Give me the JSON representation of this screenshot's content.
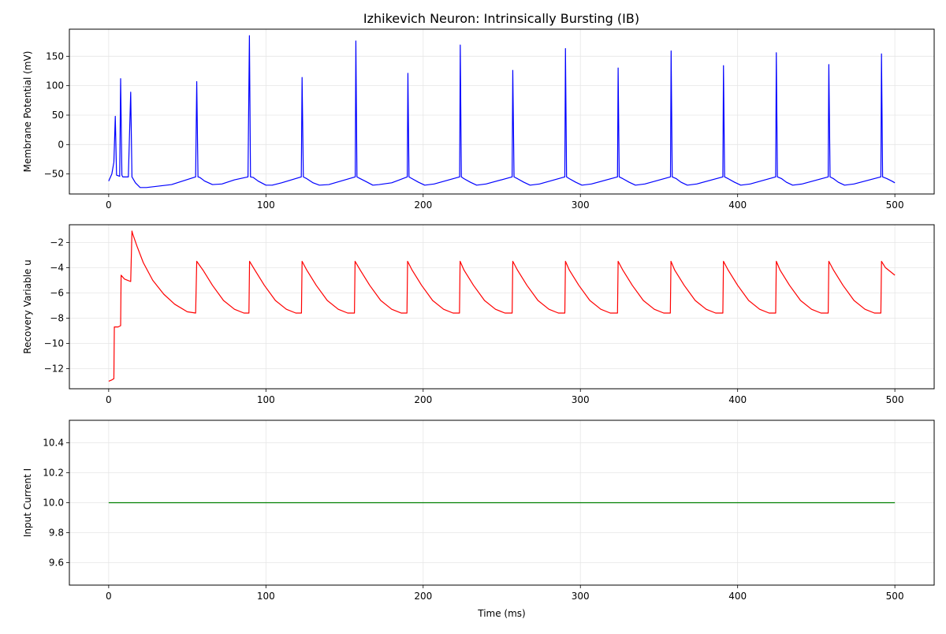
{
  "figure": {
    "title": "Izhikevich Neuron: Intrinsically Bursting (IB)"
  },
  "chart_data": [
    {
      "type": "line",
      "title": "Izhikevich Neuron: Intrinsically Bursting (IB)",
      "xlabel": "",
      "ylabel": "Membrane Potential (mV)",
      "xlim": [
        -25,
        525
      ],
      "ylim": [
        -84,
        196
      ],
      "xticks": [
        0,
        100,
        200,
        300,
        400,
        500
      ],
      "yticks": [
        -50,
        0,
        50,
        100,
        150
      ],
      "grid": true,
      "color": "#0000ff",
      "series": [
        {
          "x": [
            0,
            2,
            3.3,
            4.2,
            5,
            7,
            7.6,
            8.4,
            9,
            12.5,
            14,
            14.8,
            17,
            20,
            24,
            40,
            55.3,
            56,
            56.8,
            58,
            61,
            66,
            72,
            80,
            88.6,
            89.5,
            90.2,
            92,
            95,
            100,
            104,
            110,
            122.5,
            123,
            123.8,
            126,
            130,
            134,
            140,
            156.8,
            157.2,
            157.9,
            160,
            163,
            168,
            172,
            180,
            189.9,
            190.3,
            191,
            193,
            197,
            201,
            207,
            223.2,
            223.6,
            224.3,
            226,
            230,
            234,
            240,
            256.6,
            257,
            257.8,
            260,
            264,
            268,
            274,
            290.1,
            290.5,
            291.2,
            293,
            297,
            301,
            307,
            323.6,
            324,
            324.7,
            327,
            331,
            335,
            341,
            357.3,
            357.7,
            358.4,
            361,
            364,
            368,
            374,
            390.6,
            391,
            391.7,
            394,
            398,
            402,
            408,
            424.2,
            424.6,
            425.3,
            428,
            431,
            435,
            441,
            457.6,
            458,
            458.8,
            461,
            464,
            468,
            474,
            491.1,
            491.5,
            492.2,
            495,
            498,
            500
          ],
          "y": [
            -62,
            -50,
            -30,
            48,
            -52,
            -54,
            112,
            -52,
            -55,
            -55,
            89,
            -55,
            -65,
            -73,
            -73,
            -68,
            -55,
            107,
            -55,
            -56,
            -62,
            -68,
            -67,
            -60,
            -55,
            185,
            -55,
            -56,
            -62,
            -69,
            -69,
            -65,
            -55,
            114,
            -55,
            -58,
            -65,
            -69,
            -68,
            -55,
            176,
            -55,
            -58,
            -62,
            -69,
            -68,
            -65,
            -55,
            121,
            -55,
            -58,
            -64,
            -69,
            -67,
            -55,
            169,
            -55,
            -58,
            -64,
            -69,
            -67,
            -55,
            126,
            -55,
            -58,
            -64,
            -69,
            -67,
            -55,
            163,
            -55,
            -58,
            -64,
            -69,
            -67,
            -55,
            130,
            -55,
            -58,
            -64,
            -69,
            -67,
            -55,
            159,
            -55,
            -58,
            -64,
            -69,
            -67,
            -55,
            134,
            -55,
            -58,
            -64,
            -69,
            -67,
            -55,
            156,
            -55,
            -58,
            -64,
            -69,
            -67,
            -55,
            136,
            -55,
            -58,
            -64,
            -69,
            -67,
            -55,
            154,
            -55,
            -58,
            -62,
            -65
          ]
        }
      ]
    },
    {
      "type": "line",
      "xlabel": "",
      "ylabel": "Recovery Variable u",
      "xlim": [
        -25,
        525
      ],
      "ylim": [
        -13.6,
        -0.6
      ],
      "xticks": [
        0,
        100,
        200,
        300,
        400,
        500
      ],
      "yticks": [
        -12,
        -10,
        -8,
        -6,
        -4,
        -2
      ],
      "grid": true,
      "color": "#ff0000",
      "series": [
        {
          "x": [
            0,
            2,
            3.3,
            3.6,
            6,
            7.6,
            7.9,
            10,
            12,
            14,
            14.8,
            15.2,
            18,
            22,
            28,
            35,
            42,
            50,
            55.3,
            56,
            60,
            66,
            73,
            80,
            86,
            89.2,
            89.6,
            93,
            99,
            106,
            113,
            119,
            122.6,
            123,
            126,
            132,
            139,
            146,
            152,
            156.3,
            156.7,
            160,
            166,
            173,
            180,
            186,
            189.7,
            190.1,
            193,
            199,
            206,
            213,
            219,
            223.1,
            223.5,
            226,
            232,
            239,
            246,
            252,
            256.6,
            257,
            260,
            266,
            273,
            280,
            286,
            290.1,
            290.5,
            293,
            299,
            306,
            313,
            319,
            323.6,
            324,
            327,
            333,
            340,
            347,
            353,
            357.2,
            357.6,
            360,
            366,
            373,
            380,
            386,
            390.6,
            391,
            394,
            400,
            407,
            414,
            420,
            424.2,
            424.6,
            427,
            433,
            440,
            447,
            453,
            457.6,
            458,
            461,
            467,
            474,
            481,
            487,
            491.1,
            491.5,
            494,
            500
          ],
          "y": [
            -13,
            -12.9,
            -12.8,
            -8.7,
            -8.7,
            -8.6,
            -4.6,
            -4.9,
            -5.0,
            -5.1,
            -1.1,
            -1.3,
            -2.3,
            -3.6,
            -5.0,
            -6.1,
            -6.9,
            -7.5,
            -7.6,
            -3.5,
            -4.2,
            -5.4,
            -6.6,
            -7.3,
            -7.6,
            -7.6,
            -3.5,
            -4.2,
            -5.4,
            -6.6,
            -7.3,
            -7.6,
            -7.6,
            -3.5,
            -4.2,
            -5.4,
            -6.6,
            -7.3,
            -7.6,
            -7.6,
            -3.5,
            -4.2,
            -5.4,
            -6.6,
            -7.3,
            -7.6,
            -7.6,
            -3.5,
            -4.2,
            -5.4,
            -6.6,
            -7.3,
            -7.6,
            -7.6,
            -3.5,
            -4.2,
            -5.4,
            -6.6,
            -7.3,
            -7.6,
            -7.6,
            -3.5,
            -4.2,
            -5.4,
            -6.6,
            -7.3,
            -7.6,
            -7.6,
            -3.5,
            -4.2,
            -5.4,
            -6.6,
            -7.3,
            -7.6,
            -7.6,
            -3.5,
            -4.2,
            -5.4,
            -6.6,
            -7.3,
            -7.6,
            -7.6,
            -3.5,
            -4.2,
            -5.4,
            -6.6,
            -7.3,
            -7.6,
            -7.6,
            -3.5,
            -4.2,
            -5.4,
            -6.6,
            -7.3,
            -7.6,
            -7.6,
            -3.5,
            -4.2,
            -5.4,
            -6.6,
            -7.3,
            -7.6,
            -7.6,
            -3.5,
            -4.2,
            -5.4,
            -6.6,
            -7.3,
            -7.6,
            -7.6,
            -3.5,
            -4.0,
            -4.6
          ]
        }
      ]
    },
    {
      "type": "line",
      "xlabel": "Time (ms)",
      "ylabel": "Input Current I",
      "xlim": [
        -25,
        525
      ],
      "ylim": [
        9.45,
        10.55
      ],
      "xticks": [
        0,
        100,
        200,
        300,
        400,
        500
      ],
      "yticks": [
        9.6,
        9.8,
        10.0,
        10.2,
        10.4
      ],
      "ytick_labels": [
        "9.6",
        "9.8",
        "10.0",
        "10.2",
        "10.4"
      ],
      "grid": true,
      "color": "#008000",
      "series": [
        {
          "x": [
            0,
            500
          ],
          "y": [
            10,
            10
          ]
        }
      ]
    }
  ]
}
